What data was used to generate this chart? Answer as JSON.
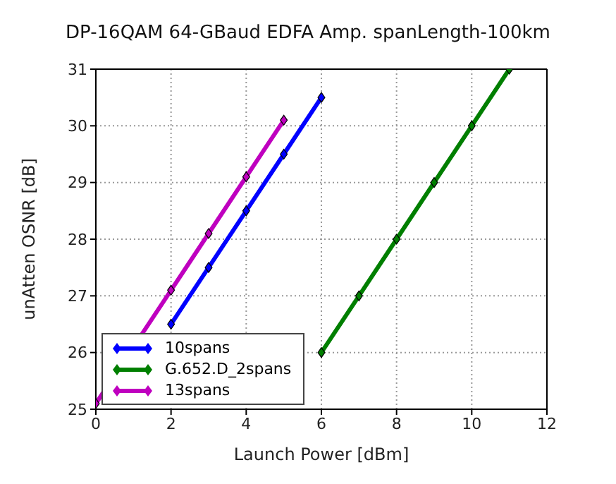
{
  "chart_data": {
    "type": "line",
    "title": "DP-16QAM 64-GBaud EDFA Amp. spanLength-100km",
    "xlabel": "Launch Power [dBm]",
    "ylabel": "unAtten OSNR [dB]",
    "xlim": [
      0,
      12
    ],
    "xticks": [
      0,
      2,
      4,
      6,
      8,
      10,
      12
    ],
    "ylim": [
      25,
      31
    ],
    "yticks": [
      25,
      26,
      27,
      28,
      29,
      30,
      31
    ],
    "grid": true,
    "legend": "bottom left",
    "marker": "diamond",
    "line_style": "solid",
    "series": [
      {
        "name": "10spans",
        "color": "#0000ff",
        "x": [
          2,
          3,
          4,
          5,
          6
        ],
        "values": [
          26.5,
          27.5,
          28.5,
          29.5,
          30.5
        ]
      },
      {
        "name": "G.652.D_2spans",
        "color": "#007f00",
        "x": [
          6,
          7,
          8,
          9,
          10,
          11
        ],
        "values": [
          26,
          27,
          28,
          29,
          30,
          31
        ]
      },
      {
        "name": "13spans",
        "color": "#bf00bf",
        "x": [
          0,
          2,
          3,
          4,
          5
        ],
        "values": [
          25.1,
          27.1,
          28.1,
          29.1,
          30.1
        ]
      }
    ]
  }
}
